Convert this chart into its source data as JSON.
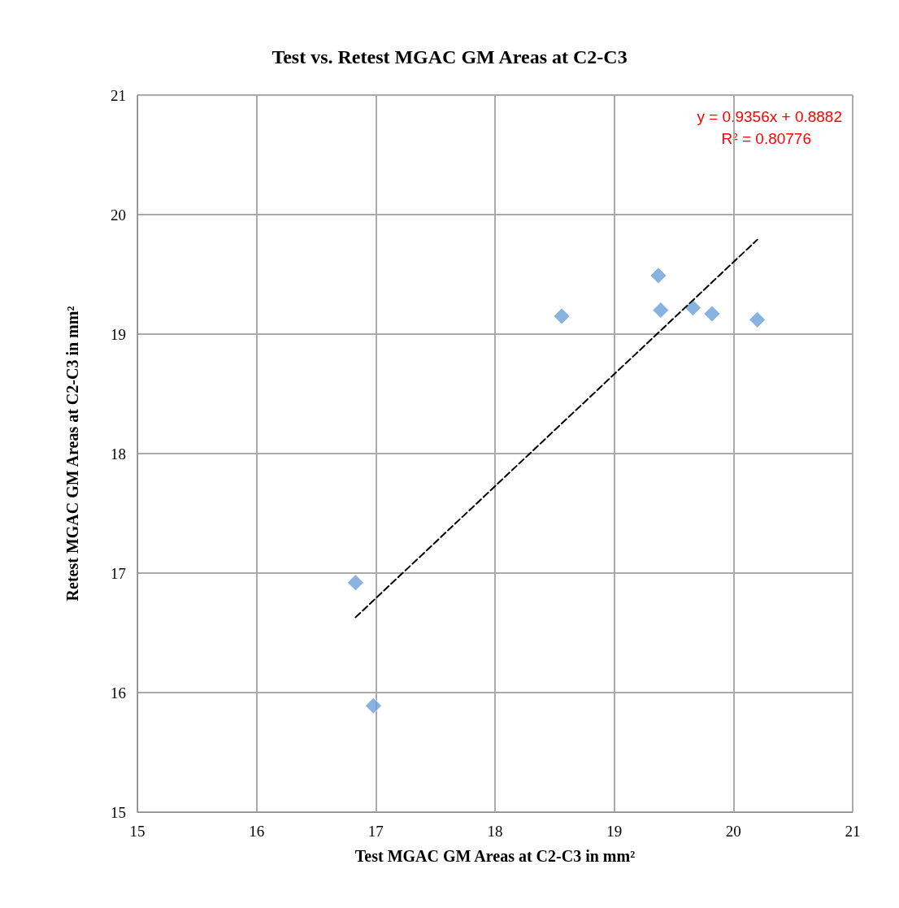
{
  "chart_data": {
    "type": "scatter",
    "title": "Test vs. Retest MGAC GM Areas at C2-C3",
    "xlabel": "Test MGAC GM Areas at C2-C3 in mm²",
    "ylabel": "Retest MGAC GM Areas at C2-C3 in mm²",
    "xlim": [
      15,
      21
    ],
    "xticks": [
      15,
      16,
      17,
      18,
      19,
      20,
      21
    ],
    "ylim": [
      15,
      21
    ],
    "yticks": [
      15,
      16,
      17,
      18,
      19,
      20,
      21
    ],
    "grid": true,
    "marker": "diamond",
    "annotations": [
      "y = 0.9356x + 0.8882",
      "R² = 0.80776"
    ],
    "series": [
      {
        "color": "#6a9fd8",
        "x": [
          16.83,
          16.98,
          18.56,
          19.37,
          19.39,
          19.66,
          19.82,
          20.2
        ],
        "values": [
          16.92,
          15.89,
          19.15,
          19.49,
          19.2,
          19.22,
          19.17,
          19.12
        ]
      },
      {
        "type": "line",
        "color": "#000000",
        "line_style": "dashed",
        "marker": "none",
        "x": [
          16.83,
          20.2
        ],
        "values": [
          16.63,
          19.79
        ]
      }
    ]
  }
}
